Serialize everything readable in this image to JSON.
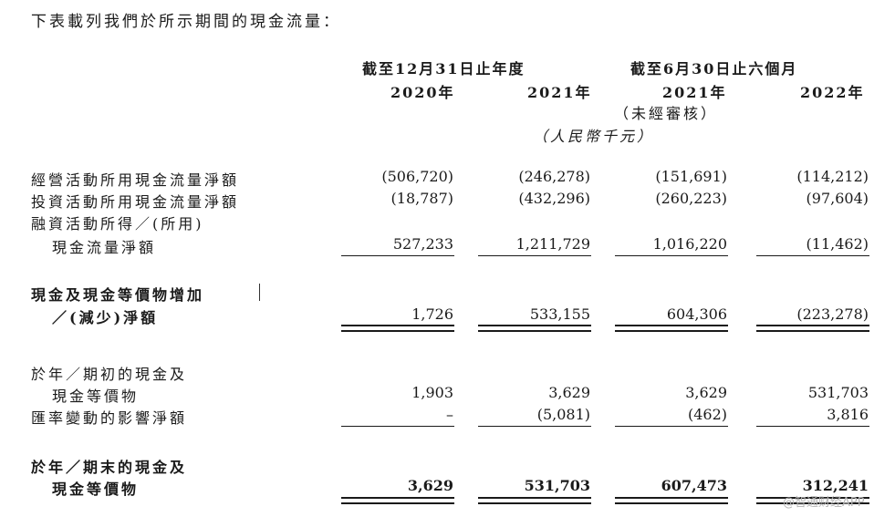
{
  "intro": "下表載列我們於所示期間的現金流量：",
  "header": {
    "group1": "截至12月31日止年度",
    "group2": "截至6月30日止六個月",
    "years": [
      "2020年",
      "2021年",
      "2021年",
      "2022年"
    ],
    "unaudited": "（未經審核）",
    "unit": "（人民幣千元）"
  },
  "rows": {
    "op": {
      "label": "經營活動所用現金流量淨額",
      "values": [
        "(506,720)",
        "(246,278)",
        "(151,691)",
        "(114,212)"
      ]
    },
    "inv": {
      "label": "投資活動所用現金流量淨額",
      "values": [
        "(18,787)",
        "(432,296)",
        "(260,223)",
        "(97,604)"
      ]
    },
    "fin": {
      "label1": "融資活動所得／(所用)",
      "label2": "現金流量淨額",
      "values": [
        "527,233",
        "1,211,729",
        "1,016,220",
        "(11,462)"
      ]
    },
    "net": {
      "label1": "現金及現金等價物增加",
      "label2": "／(減少)淨額",
      "values": [
        "1,726",
        "533,155",
        "604,306",
        "(223,278)"
      ]
    },
    "begin": {
      "label1": "於年／期初的現金及",
      "label2": "現金等價物",
      "values": [
        "1,903",
        "3,629",
        "3,629",
        "531,703"
      ]
    },
    "fx": {
      "label": "匯率變動的影響淨額",
      "values": [
        "–",
        "(5,081)",
        "(462)",
        "3,816"
      ]
    },
    "end": {
      "label1": "於年／期末的現金及",
      "label2": "現金等價物",
      "values": [
        "3,629",
        "531,703",
        "607,473",
        "312,241"
      ]
    }
  },
  "watermark": "@智通财经APP"
}
